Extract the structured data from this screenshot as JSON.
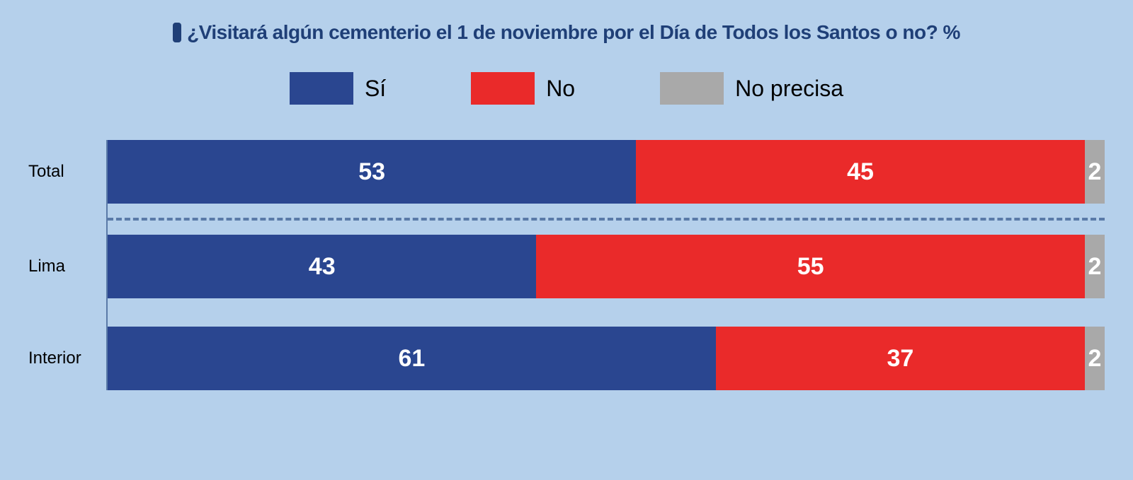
{
  "chart": {
    "type": "stacked-bar-horizontal",
    "background_color": "#b5d0eb",
    "title": {
      "text": "¿Visitará algún cementerio el 1 de noviembre por el Día de Todos los Santos o no? %",
      "color": "#1f3f77",
      "bullet_color": "#1f3f77",
      "fontsize": 28
    },
    "legend": {
      "items": [
        {
          "key": "si",
          "label": "Sí",
          "color": "#2a4690"
        },
        {
          "key": "no",
          "label": "No",
          "color": "#ea2a2a"
        },
        {
          "key": "np",
          "label": "No precisa",
          "color": "#a9a9a9"
        }
      ],
      "label_fontsize": 32
    },
    "axis_line_color": "#5a7aa8",
    "divider_color": "#5a7aa8",
    "value_label_color": "#ffffff",
    "value_label_fontsize": 34,
    "row_label_color": "#000000",
    "row_label_fontsize": 24,
    "rows": [
      {
        "label": "Total",
        "segments": [
          {
            "key": "si",
            "value": 53
          },
          {
            "key": "no",
            "value": 45
          },
          {
            "key": "np",
            "value": 2
          }
        ],
        "divider_after": true
      },
      {
        "label": "Lima",
        "segments": [
          {
            "key": "si",
            "value": 43
          },
          {
            "key": "no",
            "value": 55
          },
          {
            "key": "np",
            "value": 2
          }
        ],
        "divider_after": false
      },
      {
        "label": "Interior",
        "segments": [
          {
            "key": "si",
            "value": 61
          },
          {
            "key": "no",
            "value": 37
          },
          {
            "key": "np",
            "value": 2
          }
        ],
        "divider_after": false
      }
    ]
  }
}
